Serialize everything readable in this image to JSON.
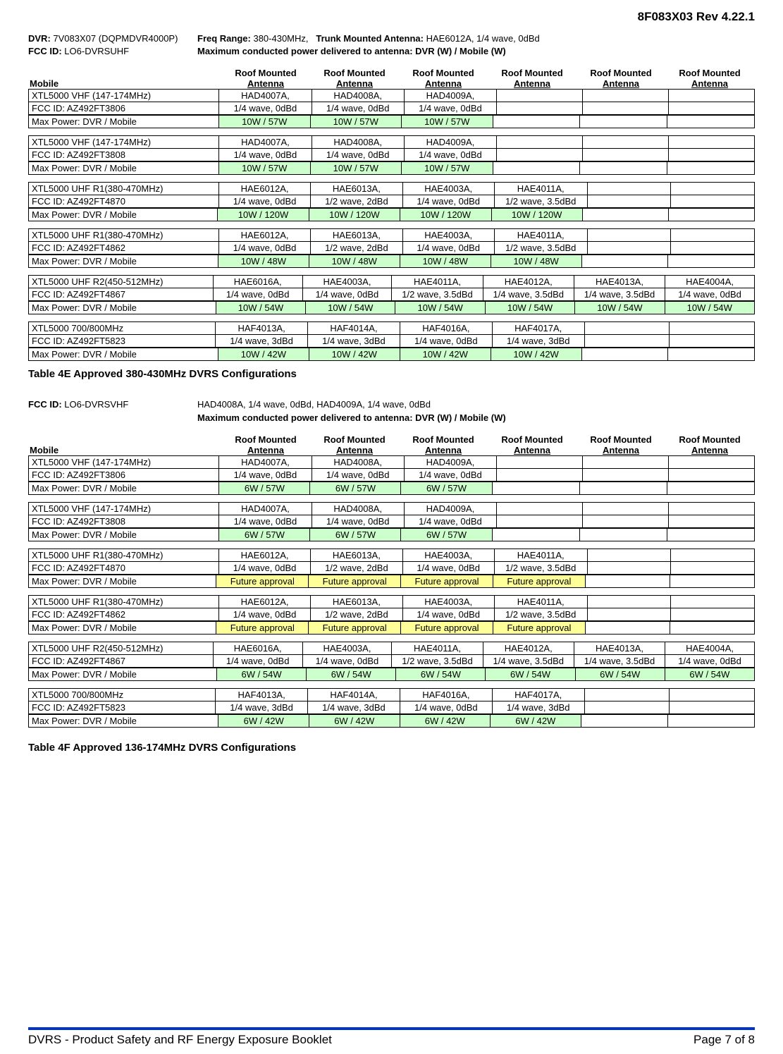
{
  "header_rev": "8F083X03 Rev 4.22.1",
  "section1": {
    "dvr_label": "DVR:",
    "dvr_value": "7V083X07 (DQPMDVR4000P)",
    "freq_label": "Freq Range:",
    "freq_value": "380-430MHz,",
    "trunk_label": "Trunk Mounted Antenna:",
    "trunk_value": "HAE6012A, 1/4 wave, 0dBd",
    "fcc_label": "FCC ID:",
    "fcc_value": "LO6-DVRSUHF",
    "max_line": "Maximum conducted power delivered to antenna:  DVR (W) / Mobile (W)",
    "mobile_header": "Mobile",
    "antenna_header_top": "Roof Mounted",
    "antenna_header_bottom": "Antenna",
    "blocks": [
      {
        "model": "XTL5000 VHF (147-174MHz)",
        "fcc": "FCC ID: AZ492FT3806",
        "ants": [
          [
            "HAD4007A,",
            "1/4 wave, 0dBd"
          ],
          [
            "HAD4008A,",
            "1/4 wave, 0dBd"
          ],
          [
            "HAD4009A,",
            "1/4 wave, 0dBd"
          ],
          [
            "",
            ""
          ],
          [
            "",
            ""
          ],
          [
            "",
            ""
          ]
        ],
        "power_label": "Max Power:  DVR / Mobile",
        "power": [
          "10W / 57W",
          "10W / 57W",
          "10W / 57W",
          "",
          "",
          ""
        ],
        "power_color": "green",
        "power_filled": 3
      },
      {
        "model": "XTL5000 VHF (147-174MHz)",
        "fcc": "FCC ID: AZ492FT3808",
        "ants": [
          [
            "HAD4007A,",
            "1/4 wave, 0dBd"
          ],
          [
            "HAD4008A,",
            "1/4 wave, 0dBd"
          ],
          [
            "HAD4009A,",
            "1/4 wave, 0dBd"
          ],
          [
            "",
            ""
          ],
          [
            "",
            ""
          ],
          [
            "",
            ""
          ]
        ],
        "power_label": "Max Power:  DVR / Mobile",
        "power": [
          "10W / 57W",
          "10W / 57W",
          "10W / 57W",
          "",
          "",
          ""
        ],
        "power_color": "green",
        "power_filled": 3
      },
      {
        "model": "XTL5000 UHF R1(380-470MHz)",
        "fcc": "FCC ID: AZ492FT4870",
        "ants": [
          [
            "HAE6012A,",
            "1/4 wave, 0dBd"
          ],
          [
            "HAE6013A,",
            "1/2 wave, 2dBd"
          ],
          [
            "HAE4003A,",
            "1/4 wave, 0dBd"
          ],
          [
            "HAE4011A,",
            "1/2 wave, 3.5dBd"
          ],
          [
            "",
            ""
          ],
          [
            "",
            ""
          ]
        ],
        "power_label": "Max Power:  DVR / Mobile",
        "power": [
          "10W / 120W",
          "10W / 120W",
          "10W / 120W",
          "10W / 120W",
          "",
          ""
        ],
        "power_color": "green",
        "power_filled": 4
      },
      {
        "model": "XTL5000 UHF R1(380-470MHz)",
        "fcc": "FCC ID: AZ492FT4862",
        "ants": [
          [
            "HAE6012A,",
            "1/4 wave, 0dBd"
          ],
          [
            "HAE6013A,",
            "1/2 wave, 2dBd"
          ],
          [
            "HAE4003A,",
            "1/4 wave, 0dBd"
          ],
          [
            "HAE4011A,",
            "1/2 wave, 3.5dBd"
          ],
          [
            "",
            ""
          ],
          [
            "",
            ""
          ]
        ],
        "power_label": "Max Power:  DVR / Mobile",
        "power": [
          "10W / 48W",
          "10W / 48W",
          "10W / 48W",
          "10W / 48W",
          "",
          ""
        ],
        "power_color": "green",
        "power_filled": 4
      },
      {
        "model": "XTL5000 UHF R2(450-512MHz)",
        "fcc": "FCC ID: AZ492FT4867",
        "ants": [
          [
            "HAE6016A,",
            "1/4 wave, 0dBd"
          ],
          [
            "HAE4003A,",
            "1/4 wave, 0dBd"
          ],
          [
            "HAE4011A,",
            "1/2 wave, 3.5dBd"
          ],
          [
            "HAE4012A,",
            "1/4 wave, 3.5dBd"
          ],
          [
            "HAE4013A,",
            "1/4 wave, 3.5dBd"
          ],
          [
            "HAE4004A,",
            "1/4 wave, 0dBd"
          ]
        ],
        "power_label": "Max Power:  DVR / Mobile",
        "power": [
          "10W / 54W",
          "10W / 54W",
          "10W / 54W",
          "10W / 54W",
          "10W / 54W",
          "10W / 54W"
        ],
        "power_color": "green",
        "power_filled": 6
      },
      {
        "model": "XTL5000 700/800MHz",
        "fcc": "FCC ID: AZ492FT5823",
        "ants": [
          [
            "HAF4013A,",
            "1/4 wave, 3dBd"
          ],
          [
            "HAF4014A,",
            "1/4 wave, 3dBd"
          ],
          [
            "HAF4016A,",
            "1/4 wave, 0dBd"
          ],
          [
            "HAF4017A,",
            "1/4 wave, 3dBd"
          ],
          [
            "",
            ""
          ],
          [
            "",
            ""
          ]
        ],
        "power_label": "Max Power:  DVR / Mobile",
        "power": [
          "10W / 42W",
          "10W / 42W",
          "10W / 42W",
          "10W / 42W",
          "",
          ""
        ],
        "power_color": "green",
        "power_filled": 4
      }
    ],
    "title": "Table 4E Approved 380-430MHz DVRS Configurations"
  },
  "section2": {
    "fcc_label": "FCC ID:",
    "fcc_value": "LO6-DVRSVHF",
    "trunk_value": "HAD4008A, 1/4 wave, 0dBd, HAD4009A, 1/4 wave, 0dBd",
    "max_line": "Maximum conducted power delivered to antenna:  DVR (W) / Mobile (W)",
    "mobile_header": "Mobile",
    "antenna_header_top": "Roof Mounted",
    "antenna_header_bottom": "Antenna",
    "blocks": [
      {
        "model": "XTL5000 VHF (147-174MHz)",
        "fcc": "FCC ID: AZ492FT3806",
        "ants": [
          [
            "HAD4007A,",
            "1/4 wave, 0dBd"
          ],
          [
            "HAD4008A,",
            "1/4 wave, 0dBd"
          ],
          [
            "HAD4009A,",
            "1/4 wave, 0dBd"
          ],
          [
            "",
            ""
          ],
          [
            "",
            ""
          ],
          [
            "",
            ""
          ]
        ],
        "power_label": "Max Power:  DVR / Mobile",
        "power": [
          "6W / 57W",
          "6W / 57W",
          "6W / 57W",
          "",
          "",
          ""
        ],
        "power_color": "green",
        "power_filled": 3
      },
      {
        "model": "XTL5000 VHF (147-174MHz)",
        "fcc": "FCC ID: AZ492FT3808",
        "ants": [
          [
            "HAD4007A,",
            "1/4 wave, 0dBd"
          ],
          [
            "HAD4008A,",
            "1/4 wave, 0dBd"
          ],
          [
            "HAD4009A,",
            "1/4 wave, 0dBd"
          ],
          [
            "",
            ""
          ],
          [
            "",
            ""
          ],
          [
            "",
            ""
          ]
        ],
        "power_label": "Max Power:  DVR / Mobile",
        "power": [
          "6W / 57W",
          "6W / 57W",
          "6W / 57W",
          "",
          "",
          ""
        ],
        "power_color": "green",
        "power_filled": 3
      },
      {
        "model": "XTL5000 UHF R1(380-470MHz)",
        "fcc": "FCC ID: AZ492FT4870",
        "ants": [
          [
            "HAE6012A,",
            "1/4 wave, 0dBd"
          ],
          [
            "HAE6013A,",
            "1/2 wave, 2dBd"
          ],
          [
            "HAE4003A,",
            "1/4 wave, 0dBd"
          ],
          [
            "HAE4011A,",
            "1/2 wave, 3.5dBd"
          ],
          [
            "",
            ""
          ],
          [
            "",
            ""
          ]
        ],
        "power_label": "Max Power:  DVR / Mobile",
        "power": [
          "Future approval",
          "Future approval",
          "Future approval",
          "Future approval",
          "",
          ""
        ],
        "power_color": "yellow",
        "power_filled": 4
      },
      {
        "model": "XTL5000 UHF R1(380-470MHz)",
        "fcc": "FCC ID: AZ492FT4862",
        "ants": [
          [
            "HAE6012A,",
            "1/4 wave, 0dBd"
          ],
          [
            "HAE6013A,",
            "1/2 wave, 2dBd"
          ],
          [
            "HAE4003A,",
            "1/4 wave, 0dBd"
          ],
          [
            "HAE4011A,",
            "1/2 wave, 3.5dBd"
          ],
          [
            "",
            ""
          ],
          [
            "",
            ""
          ]
        ],
        "power_label": "Max Power:  DVR / Mobile",
        "power": [
          "Future approval",
          "Future approval",
          "Future approval",
          "Future approval",
          "",
          ""
        ],
        "power_color": "yellow",
        "power_filled": 4
      },
      {
        "model": "XTL5000 UHF R2(450-512MHz)",
        "fcc": "FCC ID: AZ492FT4867",
        "ants": [
          [
            "HAE6016A,",
            "1/4 wave, 0dBd"
          ],
          [
            "HAE4003A,",
            "1/4 wave, 0dBd"
          ],
          [
            "HAE4011A,",
            "1/2 wave, 3.5dBd"
          ],
          [
            "HAE4012A,",
            "1/4 wave, 3.5dBd"
          ],
          [
            "HAE4013A,",
            "1/4 wave, 3.5dBd"
          ],
          [
            "HAE4004A,",
            "1/4 wave, 0dBd"
          ]
        ],
        "power_label": "Max Power:  DVR / Mobile",
        "power": [
          "6W / 54W",
          "6W / 54W",
          "6W / 54W",
          "6W / 54W",
          "6W / 54W",
          "6W / 54W"
        ],
        "power_color": "green",
        "power_filled": 6
      },
      {
        "model": "XTL5000 700/800MHz",
        "fcc": "FCC ID: AZ492FT5823",
        "ants": [
          [
            "HAF4013A,",
            "1/4 wave, 3dBd"
          ],
          [
            "HAF4014A,",
            "1/4 wave, 3dBd"
          ],
          [
            "HAF4016A,",
            "1/4 wave, 0dBd"
          ],
          [
            "HAF4017A,",
            "1/4 wave, 3dBd"
          ],
          [
            "",
            ""
          ],
          [
            "",
            ""
          ]
        ],
        "power_label": "Max Power:  DVR / Mobile",
        "power": [
          "6W / 42W",
          "6W / 42W",
          "6W / 42W",
          "6W / 42W",
          "",
          ""
        ],
        "power_color": "green",
        "power_filled": 4
      }
    ],
    "title": "Table 4F Approved 136-174MHz DVRS Configurations"
  },
  "footer": {
    "left": "DVRS - Product Safety and RF Energy Exposure Booklet",
    "right": "Page 7 of 8"
  }
}
